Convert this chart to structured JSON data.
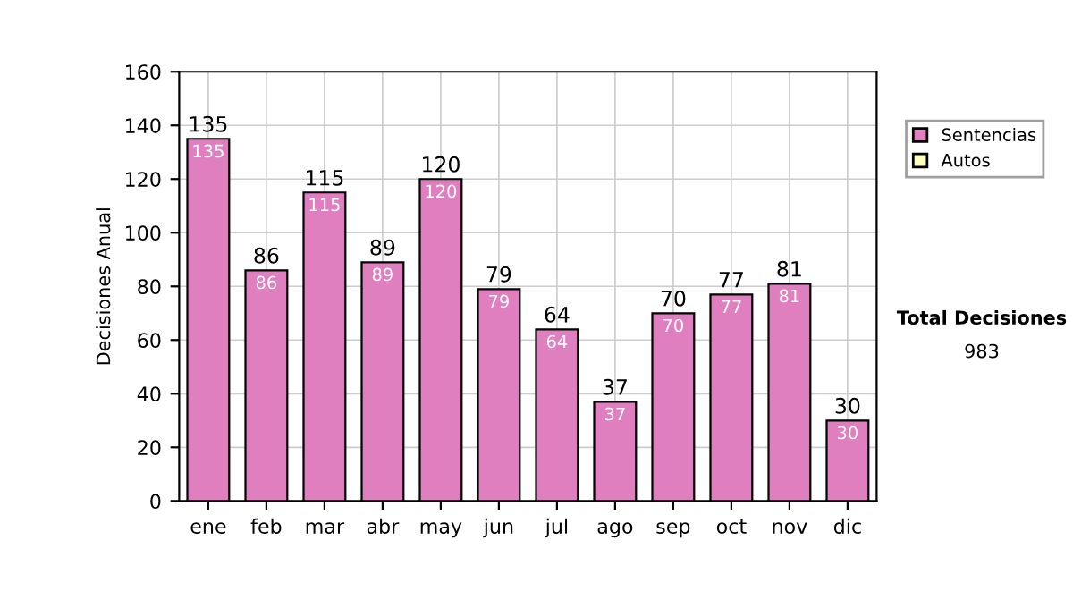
{
  "chart_data": {
    "type": "bar",
    "ylabel": "Decisiones Anual",
    "categories": [
      "ene",
      "feb",
      "mar",
      "abr",
      "may",
      "jun",
      "jul",
      "ago",
      "sep",
      "oct",
      "nov",
      "dic"
    ],
    "series": [
      {
        "name": "Sentencias",
        "color": "#e07fc0",
        "values": [
          135,
          86,
          115,
          89,
          120,
          79,
          64,
          37,
          70,
          77,
          81,
          30
        ],
        "value_labels": [
          "135",
          "86",
          "115",
          "89",
          "120",
          "79",
          "64",
          "37",
          "70",
          "77",
          "81",
          "30"
        ]
      },
      {
        "name": "Autos",
        "color": "#ffffc0",
        "values": [
          0,
          0,
          0,
          0,
          0,
          0,
          0,
          0,
          0,
          0,
          0,
          0
        ]
      }
    ],
    "stacked": true,
    "totals": [
      "135",
      "86",
      "115",
      "89",
      "120",
      "79",
      "64",
      "37",
      "70",
      "77",
      "81",
      "30"
    ],
    "ylim": [
      0,
      160
    ],
    "yticks": [
      0,
      20,
      40,
      60,
      80,
      100,
      120,
      140,
      160
    ],
    "grid": true,
    "legend": "right",
    "annotations": [
      "Total Decisiones",
      "983"
    ]
  }
}
